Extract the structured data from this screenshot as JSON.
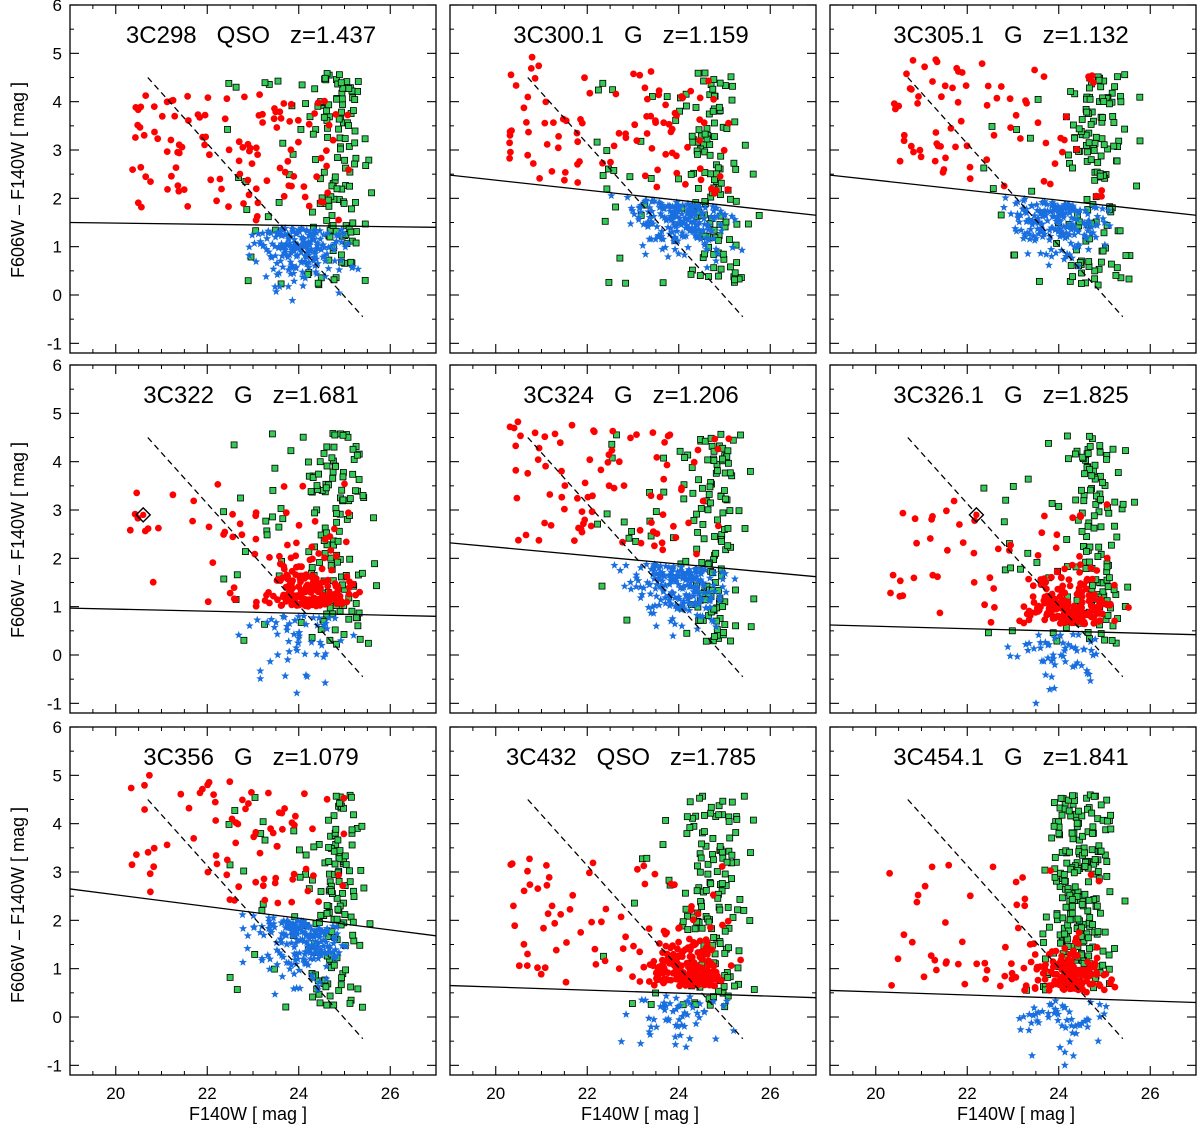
{
  "figure": {
    "ylabel": "F606W – F140W  [ mag ]",
    "xlabel": "F140W  [ mag ]",
    "colors": {
      "red": "#ff0000",
      "blue": "#1a6fe0",
      "green": "#33cc55",
      "edge": "#000000"
    }
  },
  "chart_data": [
    {
      "type": "scatter",
      "name": "3C298",
      "cls": "QSO",
      "z": "z=1.437",
      "title": "3C298   QSO   z=1.437",
      "xlim": [
        19,
        27
      ],
      "ylim": [
        -1.2,
        6
      ],
      "xticks": [
        20,
        22,
        24,
        26
      ],
      "yticks": [
        -1,
        0,
        1,
        2,
        3,
        4,
        5,
        6
      ],
      "solid_line": [
        [
          19,
          1.5
        ],
        [
          27,
          1.4
        ]
      ],
      "dashed_line": [
        [
          20.7,
          4.5
        ],
        [
          25.4,
          -0.45
        ]
      ],
      "red_density": 0.7,
      "seed": 11
    },
    {
      "type": "scatter",
      "name": "3C300.1",
      "cls": "G",
      "z": "z=1.159",
      "title": "3C300.1   G   z=1.159",
      "xlim": [
        19,
        27
      ],
      "ylim": [
        -1.2,
        6
      ],
      "xticks": [
        20,
        22,
        24,
        26
      ],
      "yticks": [
        -1,
        0,
        1,
        2,
        3,
        4,
        5,
        6
      ],
      "solid_line": [
        [
          19,
          2.48
        ],
        [
          27,
          1.65
        ]
      ],
      "dashed_line": [
        [
          20.7,
          4.5
        ],
        [
          25.4,
          -0.45
        ]
      ],
      "red_density": 0.5,
      "seed": 23
    },
    {
      "type": "scatter",
      "name": "3C305.1",
      "cls": "G",
      "z": "z=1.132",
      "title": "3C305.1   G   z=1.132",
      "xlim": [
        19,
        27
      ],
      "ylim": [
        -1.2,
        6
      ],
      "xticks": [
        20,
        22,
        24,
        26
      ],
      "yticks": [
        -1,
        0,
        1,
        2,
        3,
        4,
        5,
        6
      ],
      "solid_line": [
        [
          19,
          2.48
        ],
        [
          27,
          1.65
        ]
      ],
      "dashed_line": [
        [
          20.7,
          4.5
        ],
        [
          25.4,
          -0.45
        ]
      ],
      "red_density": 0.3,
      "seed": 37
    },
    {
      "type": "scatter",
      "name": "3C322",
      "cls": "G",
      "z": "z=1.681",
      "title": "3C322   G   z=1.681",
      "xlim": [
        19,
        27
      ],
      "ylim": [
        -1.2,
        6
      ],
      "xticks": [
        20,
        22,
        24,
        26
      ],
      "yticks": [
        -1,
        0,
        1,
        2,
        3,
        4,
        5,
        6
      ],
      "solid_line": [
        [
          19,
          0.97
        ],
        [
          27,
          0.8
        ]
      ],
      "dashed_line": [
        [
          20.7,
          4.5
        ],
        [
          25.4,
          -0.45
        ]
      ],
      "red_density": 1.6,
      "seed": 41,
      "diamond": [
        20.6,
        2.9
      ]
    },
    {
      "type": "scatter",
      "name": "3C324",
      "cls": "G",
      "z": "z=1.206",
      "title": "3C324   G   z=1.206",
      "xlim": [
        19,
        27
      ],
      "ylim": [
        -1.2,
        6
      ],
      "xticks": [
        20,
        22,
        24,
        26
      ],
      "yticks": [
        -1,
        0,
        1,
        2,
        3,
        4,
        5,
        6
      ],
      "solid_line": [
        [
          19,
          2.32
        ],
        [
          27,
          1.62
        ]
      ],
      "dashed_line": [
        [
          20.7,
          4.5
        ],
        [
          25.4,
          -0.45
        ]
      ],
      "red_density": 0.4,
      "seed": 53
    },
    {
      "type": "scatter",
      "name": "3C326.1",
      "cls": "G",
      "z": "z=1.825",
      "title": "3C326.1   G   z=1.825",
      "xlim": [
        19,
        27
      ],
      "ylim": [
        -1.2,
        6
      ],
      "xticks": [
        20,
        22,
        24,
        26
      ],
      "yticks": [
        -1,
        0,
        1,
        2,
        3,
        4,
        5,
        6
      ],
      "solid_line": [
        [
          19,
          0.62
        ],
        [
          27,
          0.42
        ]
      ],
      "dashed_line": [
        [
          20.7,
          4.5
        ],
        [
          25.4,
          -0.45
        ]
      ],
      "red_density": 2.0,
      "seed": 61,
      "diamond": [
        22.2,
        2.9
      ]
    },
    {
      "type": "scatter",
      "name": "3C356",
      "cls": "G",
      "z": "z=1.079",
      "title": "3C356   G   z=1.079",
      "xlim": [
        19,
        27
      ],
      "ylim": [
        -1.2,
        6
      ],
      "xticks": [
        20,
        22,
        24,
        26
      ],
      "yticks": [
        -1,
        0,
        1,
        2,
        3,
        4,
        5,
        6
      ],
      "solid_line": [
        [
          19,
          2.65
        ],
        [
          27,
          1.68
        ]
      ],
      "dashed_line": [
        [
          20.7,
          4.5
        ],
        [
          25.4,
          -0.45
        ]
      ],
      "red_density": 0.3,
      "seed": 71
    },
    {
      "type": "scatter",
      "name": "3C432",
      "cls": "QSO",
      "z": "z=1.785",
      "title": "3C432   QSO   z=1.785",
      "xlim": [
        19,
        27
      ],
      "ylim": [
        -1.2,
        6
      ],
      "xticks": [
        20,
        22,
        24,
        26
      ],
      "yticks": [
        -1,
        0,
        1,
        2,
        3,
        4,
        5,
        6
      ],
      "solid_line": [
        [
          19,
          0.65
        ],
        [
          27,
          0.4
        ]
      ],
      "dashed_line": [
        [
          20.7,
          4.5
        ],
        [
          25.4,
          -0.45
        ]
      ],
      "red_density": 2.2,
      "seed": 83
    },
    {
      "type": "scatter",
      "name": "3C454.1",
      "cls": "G",
      "z": "z=1.841",
      "title": "3C454.1   G   z=1.841",
      "xlim": [
        19,
        27
      ],
      "ylim": [
        -1.2,
        6
      ],
      "xticks": [
        20,
        22,
        24,
        26
      ],
      "yticks": [
        -1,
        0,
        1,
        2,
        3,
        4,
        5,
        6
      ],
      "solid_line": [
        [
          19,
          0.55
        ],
        [
          27,
          0.3
        ]
      ],
      "dashed_line": [
        [
          20.7,
          4.5
        ],
        [
          25.4,
          -0.45
        ]
      ],
      "red_density": 1.3,
      "seed": 97,
      "dense_green": true
    }
  ]
}
